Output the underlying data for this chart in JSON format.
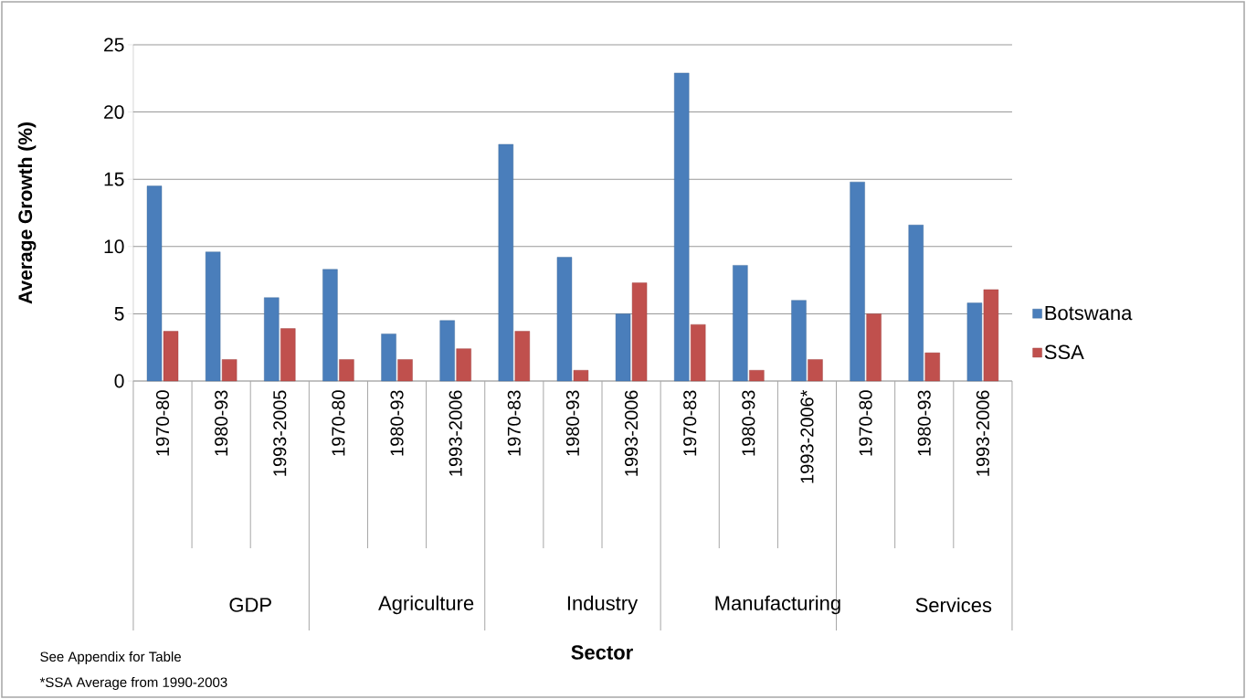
{
  "chart_data": {
    "type": "bar",
    "ylabel": "Average Growth (%)",
    "categories": [
      "1970-80",
      "1980-93",
      "1993-2005",
      "1970-80",
      "1980-93",
      "1993-2006",
      "1970-83",
      "1980-93",
      "1993-2006",
      "1970-83",
      "1980-93",
      "1993-2006*",
      "1970-80",
      "1980-93",
      "1993-2006"
    ],
    "series": [
      {
        "name": "Botswana",
        "color": "#4a7ebb",
        "values": [
          14.5,
          9.6,
          6.2,
          8.3,
          3.5,
          4.5,
          17.6,
          9.2,
          5.0,
          22.9,
          8.6,
          6.0,
          14.8,
          11.6,
          5.8
        ]
      },
      {
        "name": "SSA",
        "color": "#c0504d",
        "values": [
          3.7,
          1.6,
          3.9,
          1.6,
          1.6,
          2.4,
          3.7,
          0.8,
          7.3,
          4.2,
          0.8,
          1.6,
          5.0,
          2.1,
          6.8
        ]
      }
    ],
    "ylim": [
      0,
      25
    ],
    "yticks": [
      0,
      5,
      10,
      15,
      20,
      25
    ],
    "grid": "y",
    "legend": "right",
    "annotations": [
      "GDP",
      "Agriculture",
      "Industry",
      "Manufacturing",
      "Services",
      "Sector",
      "See Appendix for Table",
      "*SSA Average from 1990-2003"
    ]
  }
}
